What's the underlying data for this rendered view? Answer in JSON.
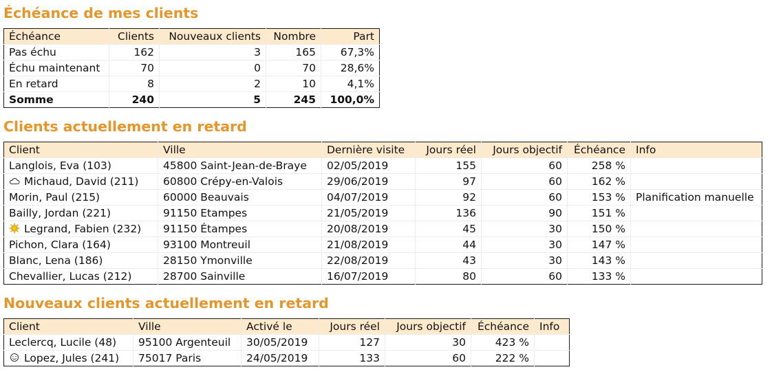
{
  "section1": {
    "title": "Échéance de mes clients",
    "headers": [
      "Échéance",
      "Clients",
      "Nouveaux clients",
      "Nombre",
      "Part"
    ],
    "rows": [
      [
        "Pas échu",
        "162",
        "3",
        "165",
        "67,3%"
      ],
      [
        "Échu maintenant",
        "70",
        "0",
        "70",
        "28,6%"
      ],
      [
        "En retard",
        "8",
        "2",
        "10",
        "4,1%"
      ]
    ],
    "total": [
      "Somme",
      "240",
      "5",
      "245",
      "100,0%"
    ]
  },
  "section2": {
    "title": "Clients actuellement en retard",
    "headers": [
      "Client",
      "Ville",
      "Dernière visite",
      "Jours réel",
      "Jours objectif",
      "Échéance",
      "Info"
    ],
    "rows": [
      {
        "icon": "",
        "client": "Langlois, Eva (103)",
        "ville": "45800 Saint-Jean-de-Braye",
        "visite": "02/05/2019",
        "reel": "155",
        "objectif": "60",
        "echeance": "258 %",
        "info": ""
      },
      {
        "icon": "cloud-icon",
        "client": "Michaud, David (211)",
        "ville": "60800 Crépy-en-Valois",
        "visite": "29/06/2019",
        "reel": "97",
        "objectif": "60",
        "echeance": "162 %",
        "info": ""
      },
      {
        "icon": "",
        "client": "Morin, Paul (215)",
        "ville": "60000 Beauvais",
        "visite": "04/07/2019",
        "reel": "92",
        "objectif": "60",
        "echeance": "153 %",
        "info": "Planification manuelle"
      },
      {
        "icon": "",
        "client": "Bailly, Jordan (221)",
        "ville": "91150 Etampes",
        "visite": "21/05/2019",
        "reel": "136",
        "objectif": "90",
        "echeance": "151 %",
        "info": ""
      },
      {
        "icon": "sun-icon",
        "client": "Legrand, Fabien (232)",
        "ville": "91150 Étampes",
        "visite": "20/08/2019",
        "reel": "45",
        "objectif": "30",
        "echeance": "150 %",
        "info": ""
      },
      {
        "icon": "",
        "client": "Pichon, Clara (164)",
        "ville": "93100 Montreuil",
        "visite": "21/08/2019",
        "reel": "44",
        "objectif": "30",
        "echeance": "147 %",
        "info": ""
      },
      {
        "icon": "",
        "client": "Blanc, Lena (186)",
        "ville": "28150 Ymonville",
        "visite": "22/08/2019",
        "reel": "43",
        "objectif": "30",
        "echeance": "143 %",
        "info": ""
      },
      {
        "icon": "",
        "client": "Chevallier, Lucas (212)",
        "ville": "28700 Sainville",
        "visite": "16/07/2019",
        "reel": "80",
        "objectif": "60",
        "echeance": "133 %",
        "info": ""
      }
    ]
  },
  "section3": {
    "title": "Nouveaux clients actuellement en retard",
    "headers": [
      "Client",
      "Ville",
      "Activé le",
      "Jours réel",
      "Jours objectif",
      "Échéance",
      "Info"
    ],
    "rows": [
      {
        "icon": "",
        "client": "Leclercq, Lucile (48)",
        "ville": "95100 Argenteuil",
        "active": "30/05/2019",
        "reel": "127",
        "objectif": "30",
        "echeance": "423 %",
        "info": ""
      },
      {
        "icon": "smiley-icon",
        "client": "Lopez, Jules (241)",
        "ville": "75017 Paris",
        "active": "24/05/2019",
        "reel": "133",
        "objectif": "60",
        "echeance": "222 %",
        "info": ""
      }
    ]
  }
}
